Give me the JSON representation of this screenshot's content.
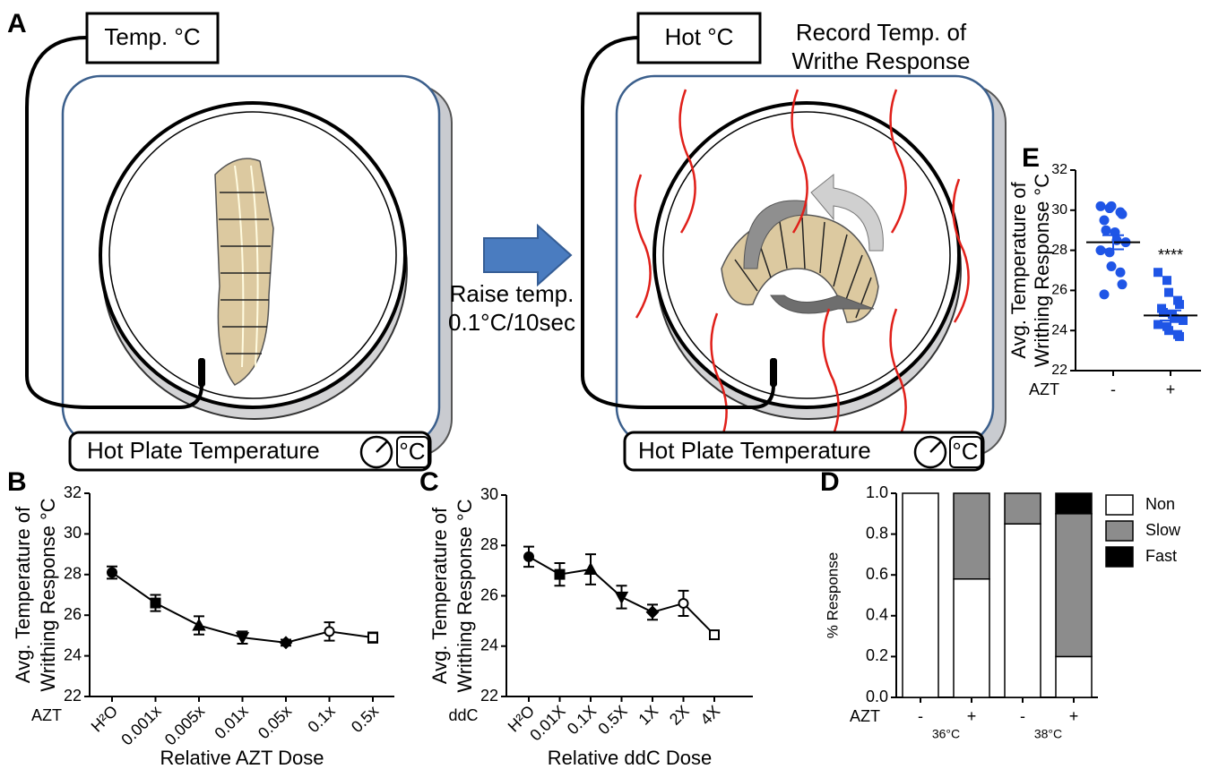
{
  "diagram": {
    "panel": "A",
    "left_probe_label": "Temp. °C",
    "left_plate_label": "Hot Plate Temperature",
    "left_unit": "°C",
    "arrow_text": [
      "Raise temp.",
      "0.1°C/10sec"
    ],
    "right_probe_label": "Hot °C",
    "right_note": [
      "Record Temp. of",
      "Writhe Response"
    ],
    "right_plate_label": "Hot Plate Temperature",
    "right_unit": "°C"
  },
  "chart_data": [
    {
      "type": "line",
      "panel": "B",
      "categories": [
        "H²O",
        "0.001x",
        "0.005x",
        "0.01x",
        "0.05x",
        "0.1x",
        "0.5x"
      ],
      "category_prefix": "AZT",
      "xlabel": "Relative AZT Dose",
      "ylabel": [
        "Avg. Temperature of",
        "Writhing Response °C"
      ],
      "ylim": [
        22,
        32
      ],
      "yticks": [
        22,
        24,
        26,
        28,
        30,
        32
      ],
      "color": "#000000",
      "markers": [
        "circle",
        "square",
        "triangle",
        "triangle-down",
        "diamond",
        "circle-open",
        "square-open"
      ],
      "values": [
        28.1,
        26.6,
        25.5,
        24.9,
        24.65,
        25.2,
        24.9
      ],
      "errors": [
        0.3,
        0.4,
        0.45,
        0.3,
        0.15,
        0.45,
        0.25
      ]
    },
    {
      "type": "line",
      "panel": "C",
      "categories": [
        "H²O",
        "0.01X",
        "0.1X",
        "0.5X",
        "1X",
        "2X",
        "4X"
      ],
      "category_prefix": "ddC",
      "xlabel": "Relative ddC Dose",
      "ylabel": [
        "Avg. Temperature of",
        "Writhing Response °C"
      ],
      "ylim": [
        22,
        30
      ],
      "yticks": [
        22,
        24,
        26,
        28,
        30
      ],
      "color": "#000000",
      "markers": [
        "circle",
        "square",
        "triangle",
        "triangle-down",
        "diamond",
        "circle-open",
        "square-open"
      ],
      "values": [
        27.55,
        26.85,
        27.05,
        25.95,
        25.35,
        25.7,
        24.45
      ],
      "errors": [
        0.4,
        0.45,
        0.6,
        0.45,
        0.3,
        0.5,
        0.1
      ]
    },
    {
      "type": "stacked-bar",
      "panel": "D",
      "categories": [
        "-",
        "+",
        "-",
        "+"
      ],
      "category_prefix": "AZT",
      "groups": [
        "36°C",
        "38°C"
      ],
      "ylabel": [
        "% Response"
      ],
      "ylim": [
        0,
        1
      ],
      "yticks": [
        {
          "value": 0,
          "label": "0.0"
        },
        0.2,
        0.4,
        0.6,
        0.8,
        {
          "value": 1,
          "label": "1.0"
        }
      ],
      "series": [
        {
          "name": "Non",
          "color": "#ffffff",
          "values": [
            1.0,
            0.58,
            0.85,
            0.2
          ]
        },
        {
          "name": "Slow",
          "color": "#8c8c8c",
          "values": [
            0,
            0.42,
            0.15,
            0.7
          ]
        },
        {
          "name": "Fast",
          "color": "#000000",
          "values": [
            0,
            0,
            0,
            0.1
          ]
        }
      ]
    },
    {
      "type": "scatter",
      "panel": "E",
      "categories": [
        "-",
        "+"
      ],
      "category_prefix": "AZT",
      "ylabel": [
        "Avg. Temperature of",
        "Writhing Response °C"
      ],
      "annotation": "****",
      "ylim": [
        22,
        32
      ],
      "yticks": [
        22,
        24,
        26,
        28,
        30,
        32
      ],
      "series": [
        {
          "color": "#1f55e6",
          "marker": "circle",
          "mean": 28.4,
          "sem": 0.35,
          "values": [
            30.2,
            30.1,
            30.2,
            29.9,
            29.8,
            29.5,
            29.0,
            28.9,
            28.5,
            28.4,
            28.0,
            27.9,
            27.2,
            26.9,
            26.3,
            25.8
          ]
        },
        {
          "color": "#1f55e6",
          "marker": "square",
          "mean": 24.75,
          "sem": 0.25,
          "values": [
            26.9,
            26.5,
            25.9,
            25.5,
            25.3,
            25.1,
            24.9,
            24.8,
            24.6,
            24.5,
            24.3,
            24.2,
            24.0,
            23.8,
            23.7
          ]
        }
      ]
    }
  ]
}
